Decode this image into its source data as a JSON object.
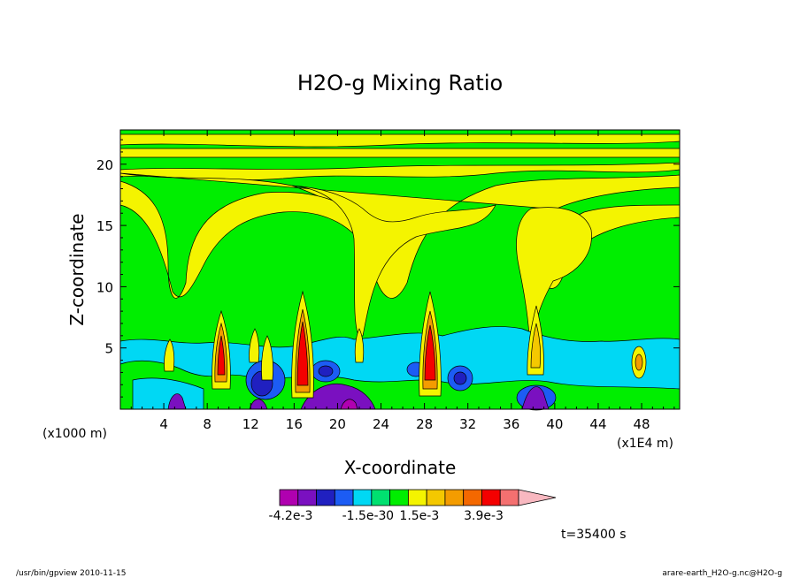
{
  "chart_data": {
    "type": "heatmap",
    "title": "H2O-g Mixing Ratio",
    "xlabel": "X-coordinate",
    "ylabel": "Z-coordinate",
    "x_unit_label": "(x1000 m)",
    "x_scale_label": "(x1E4 m)",
    "xlim": [
      0,
      51.5
    ],
    "ylim": [
      0,
      22.8
    ],
    "xticks": [
      "4",
      "8",
      "12",
      "16",
      "20",
      "24",
      "28",
      "32",
      "36",
      "40",
      "44",
      "48"
    ],
    "yticks": [
      "5",
      "10",
      "15",
      "20"
    ],
    "colorbar": {
      "colors": [
        "#b000b0",
        "#7a10c0",
        "#2020c0",
        "#1c5cf4",
        "#00d8f4",
        "#00e070",
        "#00ee00",
        "#f4f400",
        "#f4c800",
        "#f49c00",
        "#f46800",
        "#f40000",
        "#f47070",
        "#f8b8c0"
      ],
      "labels": [
        "-4.2e-3",
        "-1.5e-3",
        "0",
        "1.5e-3",
        "3.9e-3"
      ]
    },
    "time_label": "t=35400 s",
    "footer_left": "/usr/bin/gpview   2010-11-15",
    "footer_right": "arare-earth_H2O-g.nc@H2O-g"
  }
}
